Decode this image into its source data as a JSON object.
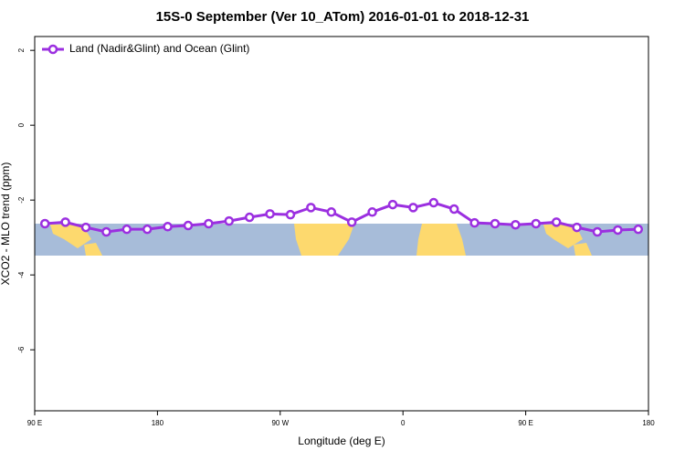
{
  "chart_data": {
    "type": "line",
    "title": "15S-0 September (Ver 10_ATom)   2016-01-01 to 2018-12-31",
    "x_label": "Longitude (deg E)",
    "y_label": "XCO2 - MLO trend (ppm)",
    "x": [
      97.5,
      112.5,
      127.5,
      142.5,
      157.5,
      172.5,
      187.5,
      202.5,
      217.5,
      232.5,
      247.5,
      262.5,
      277.5,
      292.5,
      307.5,
      322.5,
      337.5,
      352.5,
      367.5,
      382.5,
      397.5,
      412.5,
      427.5,
      442.5,
      457.5,
      472.5,
      487.5,
      502.5,
      517.5,
      532.5
    ],
    "series": [
      {
        "name": "Land (Nadir&Glint) and Ocean (Glint)",
        "color": "#9b2fe0",
        "values": [
          -2.63,
          -2.59,
          -2.73,
          -2.85,
          -2.78,
          -2.78,
          -2.71,
          -2.68,
          -2.63,
          -2.56,
          -2.46,
          -2.37,
          -2.39,
          -2.2,
          -2.32,
          -2.59,
          -2.32,
          -2.12,
          -2.2,
          -2.07,
          -2.24,
          -2.61,
          -2.63,
          -2.66,
          -2.63,
          -2.59,
          -2.73,
          -2.85,
          -2.8,
          -2.78
        ]
      }
    ],
    "xlim": [
      90,
      540
    ],
    "xticks": [
      {
        "value": 90,
        "label": "90 E"
      },
      {
        "value": 180,
        "label": "180"
      },
      {
        "value": 270,
        "label": "90 W"
      },
      {
        "value": 360,
        "label": "0"
      },
      {
        "value": 450,
        "label": "90 E"
      },
      {
        "value": 540,
        "label": "180"
      }
    ],
    "ylim": [
      -7.63,
      2.37
    ],
    "yticks": [
      -6,
      -4,
      -2,
      0,
      2
    ],
    "legend": "top-left"
  }
}
